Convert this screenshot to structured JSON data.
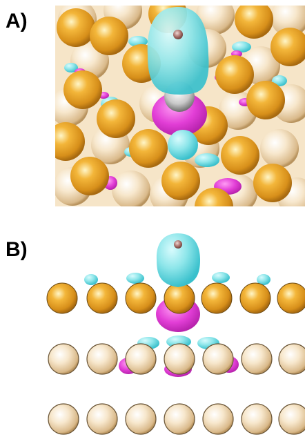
{
  "panels": [
    {
      "label": "A)"
    },
    {
      "label": "B)"
    }
  ],
  "colors": {
    "gold_atom": "#e8a42a",
    "pale_atom": "#f3dcb8",
    "cyan_isosurface": "#7fe3e8",
    "magenta_isosurface": "#e040d8",
    "adsorbate_atom": "#b07a70",
    "background": "#ffffff"
  }
}
